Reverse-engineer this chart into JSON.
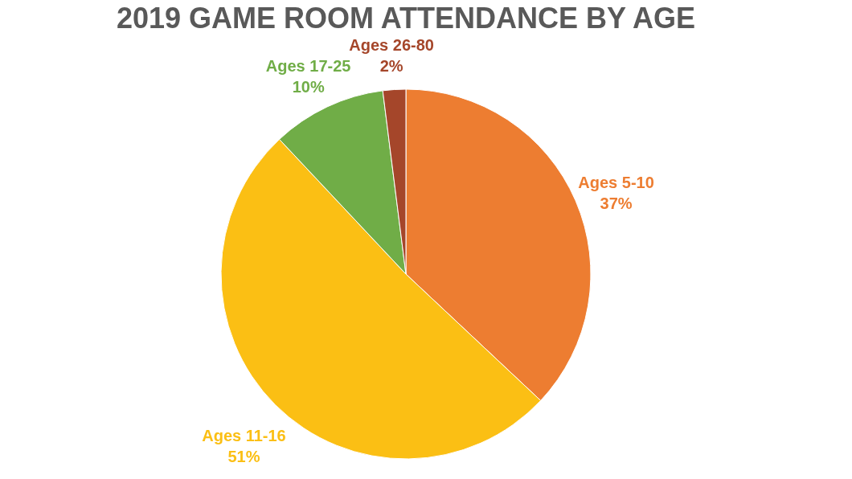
{
  "chart_data": {
    "type": "pie",
    "title": "2019 GAME ROOM ATTENDANCE BY AGE",
    "categories": [
      "Ages 5-10",
      "Ages 11-16",
      "Ages 17-25",
      "Ages 26-80"
    ],
    "values": [
      37,
      51,
      10,
      2
    ],
    "value_labels": [
      "37%",
      "51%",
      "10%",
      "2%"
    ],
    "colors": [
      "#ed7d31",
      "#fbbf14",
      "#70ad47",
      "#a5462a"
    ],
    "legend": false
  }
}
